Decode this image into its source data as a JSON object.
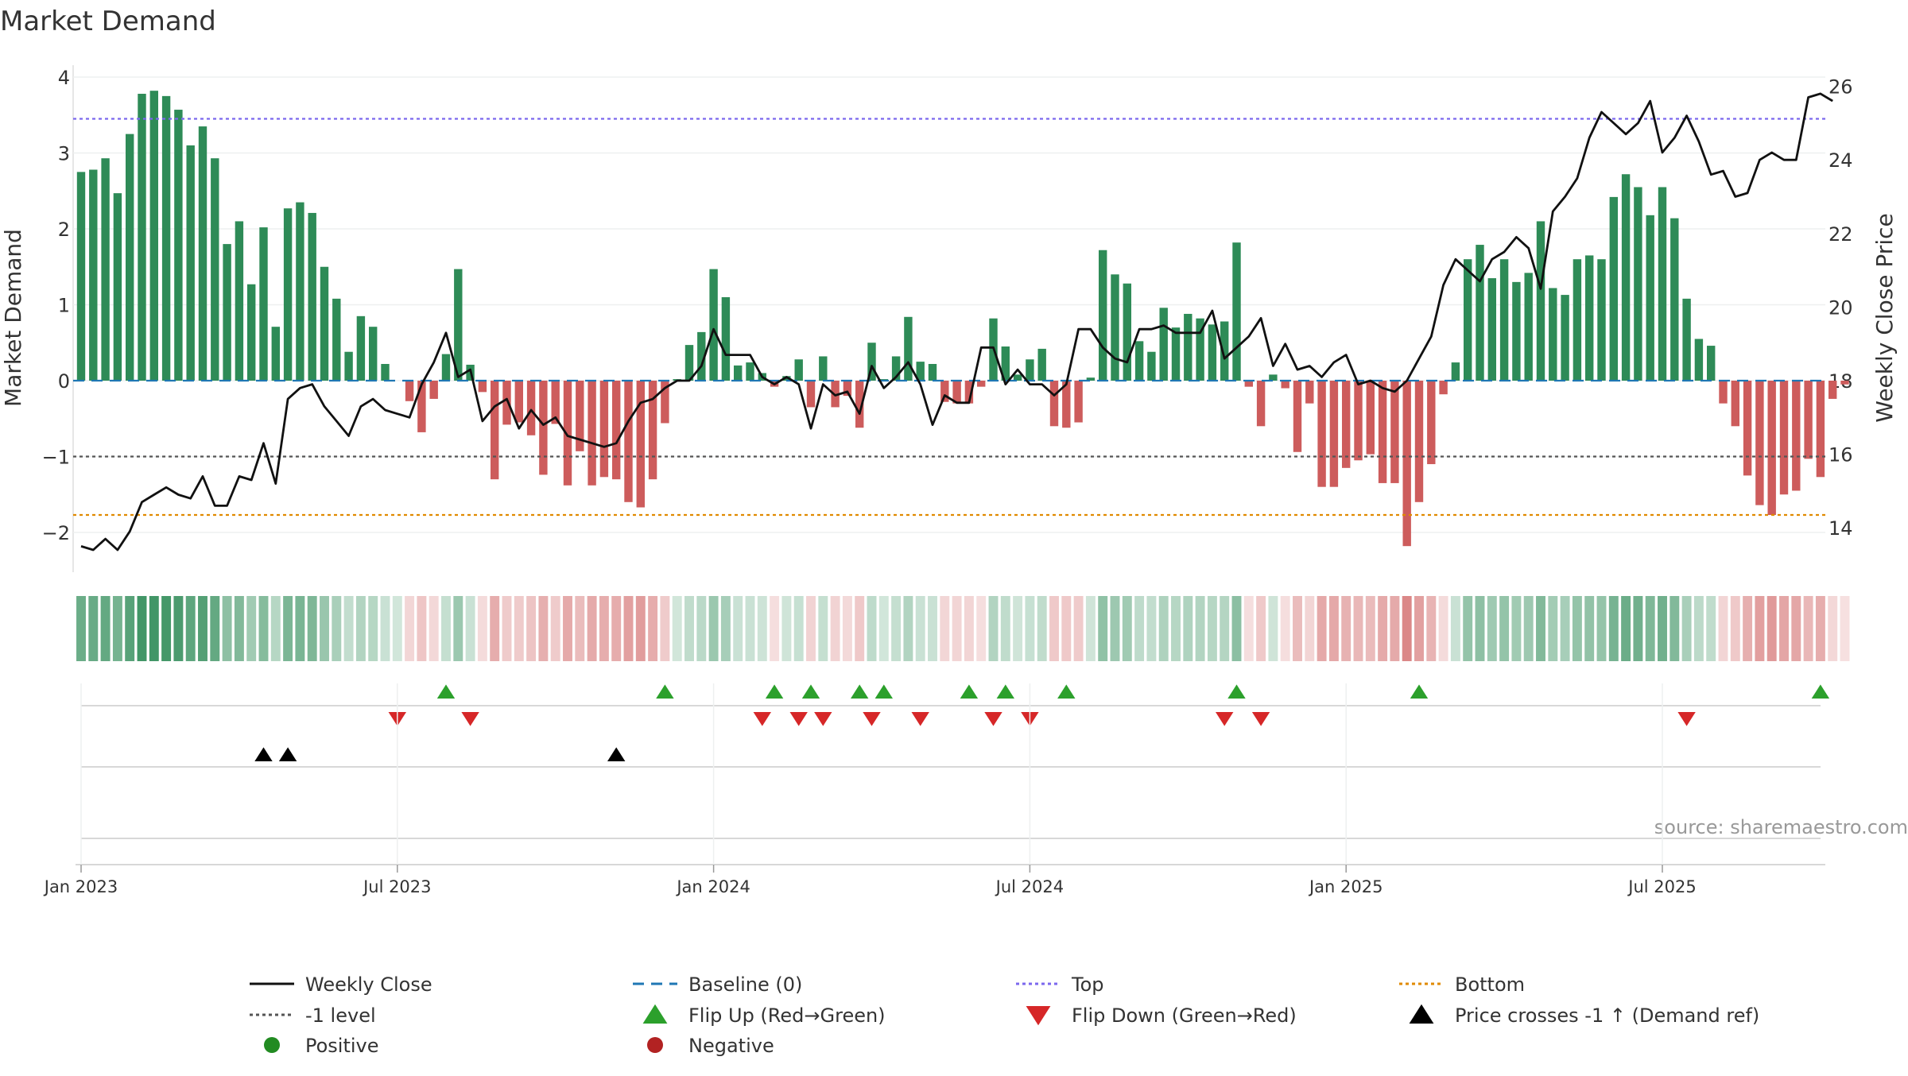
{
  "title": "Market Demand",
  "source": "source: sharemaestro.com",
  "colors": {
    "pos": "#2e8b57",
    "neg": "#cd5c5c",
    "price": "#111111",
    "baseline": "#1f77b4",
    "top": "#7b68ee",
    "minus1": "#555555",
    "bottom": "#e08a00",
    "flip_up": "#2ca02c",
    "flip_down": "#d62728",
    "cross": "#000000",
    "legend_pos": "#228b22",
    "legend_neg": "#b22222"
  },
  "chart_data": {
    "type": "bar",
    "weeks_start": "2023-01-02",
    "ylabel_left": "Market Demand",
    "ylabel_right": "Weekly Close Price",
    "ylim_left": [
      -2.5,
      4.2
    ],
    "ylim_right": [
      12.8,
      26.5
    ],
    "yticks_left": [
      "4",
      "3",
      "2",
      "1",
      "0",
      "−1",
      "−2"
    ],
    "yticks_right": [
      "26",
      "24",
      "22",
      "20",
      "18",
      "16",
      "14"
    ],
    "xticks": [
      "Jan 2023",
      "Jul 2023",
      "Jan 2024",
      "Jul 2024",
      "Jan 2025",
      "Jul 2025"
    ],
    "reference_lines": {
      "top": 3.45,
      "minus1": -1.0,
      "bottom": -1.77,
      "baseline": 0
    },
    "demand": [
      2.75,
      2.78,
      2.93,
      2.47,
      3.25,
      3.78,
      3.82,
      3.75,
      3.57,
      3.1,
      3.35,
      2.93,
      1.8,
      2.1,
      1.27,
      2.02,
      0.71,
      2.27,
      2.35,
      2.21,
      1.5,
      1.08,
      0.38,
      0.85,
      0.71,
      0.22,
      0,
      -0.27,
      -0.68,
      -0.24,
      0.35,
      1.47,
      0.21,
      -0.15,
      -1.3,
      -0.58,
      -0.55,
      -0.72,
      -1.24,
      -0.57,
      -1.38,
      -0.93,
      -1.38,
      -1.27,
      -1.3,
      -1.6,
      -1.67,
      -1.3,
      -0.56,
      0.02,
      0.47,
      0.64,
      1.47,
      1.1,
      0.2,
      0.24,
      0.1,
      -0.08,
      0.06,
      0.28,
      -0.35,
      0.32,
      -0.35,
      -0.2,
      -0.62,
      0.5,
      0.02,
      0.32,
      0.84,
      0.25,
      0.22,
      -0.28,
      -0.3,
      -0.3,
      -0.08,
      0.82,
      0.45,
      0.08,
      0.28,
      0.42,
      -0.6,
      -0.62,
      -0.55,
      0.04,
      1.72,
      1.4,
      1.28,
      0.52,
      0.38,
      0.96,
      0.7,
      0.88,
      0.82,
      0.74,
      0.78,
      1.82,
      -0.08,
      -0.6,
      0.08,
      -0.1,
      -0.94,
      -0.3,
      -1.4,
      -1.4,
      -1.15,
      -1.05,
      -0.97,
      -1.35,
      -1.35,
      -2.18,
      -1.6,
      -1.1,
      -0.18,
      0.24,
      1.6,
      1.79,
      1.35,
      1.6,
      1.3,
      1.42,
      2.1,
      1.22,
      1.13,
      1.6,
      1.65,
      1.6,
      2.42,
      2.72,
      2.55,
      2.18,
      2.55,
      2.14,
      1.08,
      0.55,
      0.46,
      -0.3,
      -0.6,
      -1.25,
      -1.64,
      -1.77,
      -1.5,
      -1.45,
      -1.03,
      -1.27,
      -0.24,
      -0.05
    ],
    "close": [
      13.5,
      13.4,
      13.7,
      13.4,
      13.9,
      14.7,
      14.9,
      15.1,
      14.9,
      14.8,
      15.4,
      14.6,
      14.6,
      15.4,
      15.3,
      16.3,
      15.2,
      17.5,
      17.8,
      17.9,
      17.3,
      16.9,
      16.5,
      17.3,
      17.5,
      17.2,
      17.1,
      17.0,
      17.9,
      18.5,
      19.3,
      18.1,
      18.3,
      16.9,
      17.3,
      17.5,
      16.7,
      17.2,
      16.8,
      17.0,
      16.5,
      16.4,
      16.3,
      16.2,
      16.3,
      16.9,
      17.4,
      17.5,
      17.8,
      18.0,
      18.0,
      18.4,
      19.4,
      18.7,
      18.7,
      18.7,
      18.1,
      17.9,
      18.1,
      17.9,
      16.7,
      17.9,
      17.6,
      17.7,
      17.1,
      18.4,
      17.8,
      18.1,
      18.5,
      17.9,
      16.8,
      17.6,
      17.4,
      17.4,
      18.9,
      18.9,
      17.9,
      18.3,
      17.9,
      17.9,
      17.6,
      17.9,
      19.4,
      19.4,
      18.9,
      18.6,
      18.5,
      19.4,
      19.4,
      19.5,
      19.3,
      19.3,
      19.3,
      19.9,
      18.6,
      18.9,
      19.2,
      19.7,
      18.4,
      19.0,
      18.3,
      18.4,
      18.1,
      18.5,
      18.7,
      17.9,
      18.0,
      17.8,
      17.7,
      18.0,
      18.6,
      19.2,
      20.6,
      21.3,
      21.0,
      20.7,
      21.3,
      21.5,
      21.9,
      21.6,
      20.5,
      22.6,
      23.0,
      23.5,
      24.6,
      25.3,
      25.0,
      24.7,
      25.0,
      25.6,
      24.2,
      24.6,
      25.2,
      24.5,
      23.6,
      23.7,
      23.0,
      23.1,
      24.0,
      24.2,
      24.0,
      24.0,
      25.7,
      25.8,
      25.6
    ],
    "flip_up_weeks": [
      30,
      48,
      57,
      60,
      64,
      66,
      73,
      76,
      81,
      95,
      110,
      143
    ],
    "flip_down_weeks": [
      26,
      32,
      56,
      59,
      61,
      65,
      69,
      75,
      78,
      94,
      97,
      132
    ],
    "cross_weeks": [
      15,
      17,
      44
    ],
    "legend": [
      [
        "line-black",
        "Weekly Close"
      ],
      [
        "line-blue-dash",
        "Baseline (0)"
      ],
      [
        "line-purple-dot",
        "Top"
      ],
      [
        "line-orange-dot",
        "Bottom"
      ],
      [
        "line-grey-dot",
        "-1 level"
      ],
      [
        "triangle-up-green",
        "Flip Up (Red→Green)"
      ],
      [
        "triangle-down-red",
        "Flip Down (Green→Red)"
      ],
      [
        "triangle-up-black",
        "Price crosses -1 ↑ (Demand ref)"
      ],
      [
        "dot-green",
        "Positive"
      ],
      [
        "dot-red",
        "Negative"
      ]
    ]
  }
}
